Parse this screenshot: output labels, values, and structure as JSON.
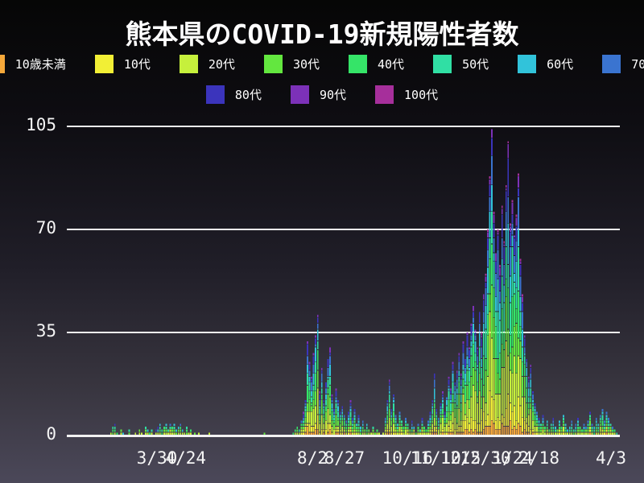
{
  "page": {
    "background_top": "#060606",
    "background_bottom": "#4b4859",
    "text_color": "#ffffff",
    "grid_color": "#f2f2f2"
  },
  "chart_data": {
    "type": "bar",
    "stacked": true,
    "title": "熊本県のCOVID-19新規陽性者数",
    "xlabel": "",
    "ylabel": "",
    "ylim": [
      0,
      105
    ],
    "y_ticks": [
      0,
      35,
      70,
      105
    ],
    "grid": "horizontal",
    "legend_position": "top",
    "legend_rows": [
      [
        0,
        1,
        2,
        3,
        4,
        5,
        6,
        7
      ],
      [
        8,
        9,
        10
      ]
    ],
    "series": [
      {
        "name": "10歳未満",
        "color": "#f5a83a"
      },
      {
        "name": "10代",
        "color": "#f2ef35"
      },
      {
        "name": "20代",
        "color": "#c6f03c"
      },
      {
        "name": "30代",
        "color": "#63e73f"
      },
      {
        "name": "40代",
        "color": "#35e468"
      },
      {
        "name": "50代",
        "color": "#30dfa4"
      },
      {
        "name": "60代",
        "color": "#31c3da"
      },
      {
        "name": "70代",
        "color": "#3a74d0"
      },
      {
        "name": "80代",
        "color": "#3b34bc"
      },
      {
        "name": "90代",
        "color": "#7c31b8"
      },
      {
        "name": "100代",
        "color": "#a62f9b"
      }
    ],
    "age_share": [
      0.04,
      0.08,
      0.19,
      0.14,
      0.13,
      0.12,
      0.1,
      0.09,
      0.07,
      0.03,
      0.01
    ],
    "x_ticks": [
      {
        "label": "3/30",
        "pos": 0.163
      },
      {
        "label": "4/24",
        "pos": 0.215
      },
      {
        "label": "8/2",
        "pos": 0.444
      },
      {
        "label": "8/27",
        "pos": 0.502
      },
      {
        "label": "10/16",
        "pos": 0.616
      },
      {
        "label": "11/10",
        "pos": 0.667
      },
      {
        "label": "12/5",
        "pos": 0.712
      },
      {
        "label": "12/30",
        "pos": 0.757
      },
      {
        "label": "1/24",
        "pos": 0.806
      },
      {
        "label": "2/18",
        "pos": 0.854
      },
      {
        "label": "4/3",
        "pos": 0.984
      }
    ],
    "daily_totals": [
      0,
      0,
      0,
      0,
      0,
      0,
      0,
      0,
      0,
      0,
      0,
      0,
      0,
      0,
      0,
      0,
      0,
      0,
      0,
      0,
      0,
      1,
      3,
      4,
      1,
      0,
      2,
      1,
      0,
      0,
      2,
      0,
      0,
      1,
      0,
      2,
      1,
      0,
      3,
      2,
      1,
      2,
      0,
      2,
      3,
      4,
      2,
      3,
      4,
      2,
      4,
      3,
      4,
      2,
      3,
      4,
      2,
      1,
      3,
      1,
      2,
      0,
      1,
      0,
      1,
      0,
      0,
      0,
      0,
      1,
      0,
      0,
      0,
      0,
      0,
      0,
      0,
      0,
      0,
      0,
      0,
      0,
      0,
      0,
      0,
      0,
      0,
      0,
      0,
      0,
      0,
      0,
      0,
      0,
      0,
      0,
      1,
      0,
      0,
      0,
      0,
      0,
      0,
      0,
      0,
      0,
      0,
      0,
      0,
      0,
      1,
      2,
      3,
      2,
      5,
      8,
      12,
      32,
      25,
      20,
      28,
      34,
      41,
      15,
      23,
      12,
      18,
      26,
      30,
      14,
      9,
      16,
      12,
      8,
      10,
      7,
      5,
      8,
      12,
      6,
      9,
      4,
      7,
      3,
      5,
      2,
      4,
      2,
      1,
      3,
      1,
      2,
      1,
      0,
      1,
      6,
      12,
      19,
      9,
      14,
      7,
      4,
      8,
      5,
      3,
      6,
      4,
      2,
      5,
      3,
      1,
      4,
      2,
      6,
      3,
      2,
      5,
      8,
      12,
      21,
      9,
      6,
      11,
      15,
      8,
      13,
      20,
      16,
      25,
      18,
      22,
      28,
      21,
      32,
      26,
      35,
      30,
      38,
      44,
      36,
      30,
      42,
      35,
      48,
      55,
      70,
      88,
      104,
      76,
      62,
      70,
      58,
      78,
      66,
      85,
      100,
      72,
      80,
      68,
      75,
      89,
      60,
      48,
      34,
      26,
      20,
      24,
      15,
      11,
      8,
      6,
      4,
      7,
      3,
      5,
      2,
      4,
      6,
      3,
      2,
      5,
      3,
      7,
      4,
      2,
      3,
      5,
      2,
      4,
      6,
      3,
      2,
      4,
      3,
      5,
      8,
      4,
      3,
      6,
      4,
      7,
      9,
      5,
      8,
      6,
      4,
      3,
      2,
      1,
      0
    ]
  }
}
